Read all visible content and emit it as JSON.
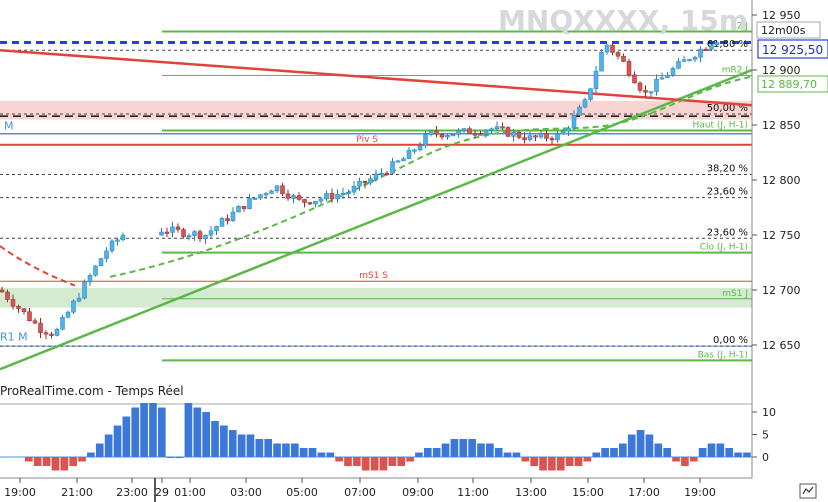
{
  "watermark": "MNQXXXX, 15m",
  "source_label": "ProRealTime.com - Temps Réel",
  "tag_time": "12m00s",
  "tag_price": "12 925,50",
  "tag_ma": "12 889,70",
  "colors": {
    "bull": "#4fb3e8",
    "bear": "#d9534f",
    "green": "#5ab846",
    "red": "#e0433a",
    "blue_line": "#4a90e2",
    "dash_blue": "#2a3fd8",
    "grid": "#333333",
    "hist_blue": "#3c78d8",
    "hist_red": "#d9534f"
  },
  "chart_data": [
    {
      "type": "candlestick",
      "title": "MNQXXXX, 15m",
      "y_ticks": [
        "12 950",
        "12 900",
        "12 850",
        "12 800",
        "12 750",
        "12 700",
        "12 650"
      ],
      "ylim": [
        12615,
        12958
      ],
      "x_ticks": [
        "19:00",
        "21:00",
        "23:00",
        "29",
        "01:00",
        "03:00",
        "05:00",
        "07:00",
        "09:00",
        "11:00",
        "13:00",
        "15:00",
        "17:00",
        "19:00"
      ],
      "levels": [
        {
          "label": "R2 J",
          "value": 12935,
          "style": "green"
        },
        {
          "label": "61,80 %",
          "value": 12918,
          "style": "dash"
        },
        {
          "label": "mR2 J",
          "value": 12895,
          "style": "green-thin"
        },
        {
          "label": "50,00 %",
          "value": 12860,
          "style": "dash"
        },
        {
          "label": "Haut (J, H-1)",
          "value": 12845,
          "style": "green"
        },
        {
          "label": "Piv S",
          "value": 12832,
          "style": "red"
        },
        {
          "label": "38,20 %",
          "value": 12805,
          "style": "dash"
        },
        {
          "label": "23,60 %",
          "value": 12784,
          "style": "dash"
        },
        {
          "label": "23,60 %",
          "value": 12747,
          "style": "dash"
        },
        {
          "label": "Clo (J, H-1)",
          "value": 12734,
          "style": "green"
        },
        {
          "label": "mS1 S",
          "value": 12708,
          "style": "red-thin"
        },
        {
          "label": "mS1 J",
          "value": 12692,
          "style": "green-thin"
        },
        {
          "label": "0,00 %",
          "value": 12649,
          "style": "dash"
        },
        {
          "label": "Bas (J, H-1)",
          "value": 12636,
          "style": "green"
        }
      ],
      "left_labels": [
        "M",
        "R1 M"
      ],
      "last_price": 12925.5,
      "ma_value": 12889.7
    },
    {
      "type": "bar",
      "title": "",
      "y_ticks": [
        "10",
        "5",
        "0"
      ],
      "ylim": [
        -3,
        12
      ]
    }
  ]
}
